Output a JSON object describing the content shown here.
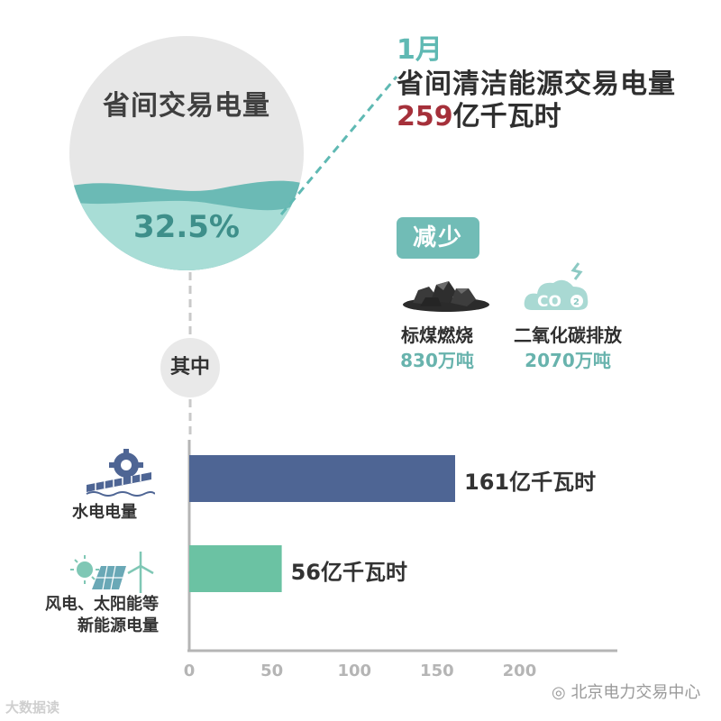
{
  "circle": {
    "title": "省间交易电量",
    "share_text": "32.5%",
    "share_fraction": 0.325
  },
  "headline": {
    "month": "1月",
    "subject": "省间清洁能源交易电量",
    "total_value": "259",
    "total_unit": "亿千瓦时"
  },
  "reduction": {
    "badge": "减少",
    "items": [
      {
        "label": "标煤燃烧",
        "value": "830万吨",
        "icon": "coal-icon"
      },
      {
        "label": "二氧化碳排放",
        "value": "2070万吨",
        "icon": "co2-cloud-icon"
      }
    ]
  },
  "breakdown_label": "其中",
  "chart_data": {
    "type": "bar",
    "orientation": "horizontal",
    "categories": [
      "水电电量",
      "风电、太阳能等新能源电量"
    ],
    "category_lines": [
      [
        "水电电量"
      ],
      [
        "风电、太阳能等",
        "新能源电量"
      ]
    ],
    "values": [
      161,
      56
    ],
    "data_labels": [
      "161亿千瓦时",
      "56亿千瓦时"
    ],
    "xlim": [
      0,
      250
    ],
    "xticks": [
      0,
      50,
      100,
      150,
      200
    ],
    "colors": [
      "#4e6594",
      "#6bc2a3"
    ],
    "grid": false,
    "category_icons": [
      "hydropower-icon",
      "wind-solar-icon"
    ]
  },
  "watermarks": {
    "left": "大数据读",
    "right": "北京电力交易中心"
  }
}
